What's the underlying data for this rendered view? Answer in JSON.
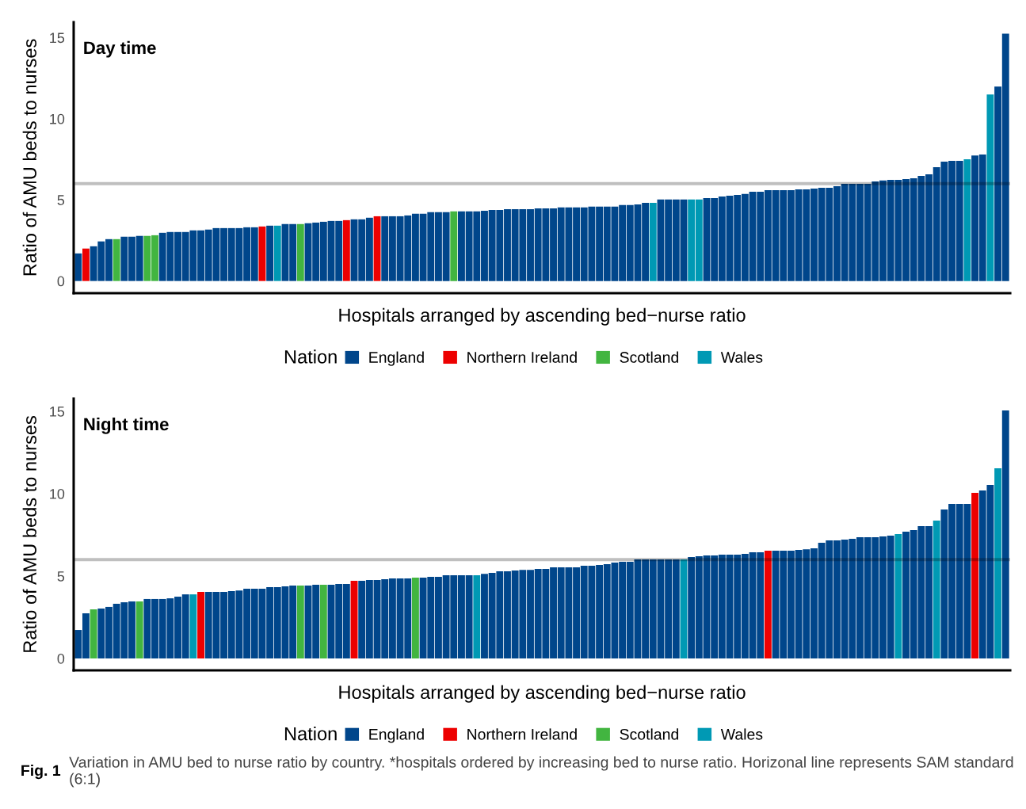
{
  "chart_data": [
    {
      "type": "bar",
      "title": "Day time",
      "xlabel": "Hospitals arranged by ascending bed−nurse ratio",
      "ylabel": "Ratio of AMU beds to nurses",
      "legend_title": "Nation",
      "legend": "bottom",
      "grid": false,
      "categories": [
        null,
        null,
        null,
        null,
        null,
        null,
        null,
        null,
        null,
        null,
        null,
        null,
        null,
        null,
        null,
        null,
        null,
        null,
        null,
        null,
        null,
        null,
        null,
        null,
        null,
        null,
        null,
        null,
        null,
        null,
        null,
        null,
        null,
        null,
        null,
        null,
        null,
        null,
        null,
        null,
        null,
        null,
        null,
        null,
        null,
        null,
        null,
        null,
        null,
        null,
        null,
        null,
        null,
        null,
        null,
        null,
        null,
        null,
        null,
        null,
        null,
        null,
        null,
        null,
        null,
        null,
        null,
        null,
        null,
        null,
        null,
        null,
        null,
        null,
        null,
        null,
        null,
        null,
        null,
        null,
        null,
        null,
        null,
        null,
        null,
        null,
        null,
        null,
        null,
        null,
        null,
        null,
        null,
        null,
        null,
        null,
        null,
        null,
        null,
        null,
        null,
        null,
        null,
        null,
        null,
        null,
        null,
        null,
        null,
        null,
        null,
        null,
        null,
        null,
        null,
        null,
        null,
        null,
        null,
        null,
        null,
        null
      ],
      "ylim": [
        -0.75,
        15.95
      ],
      "yticks": [
        0,
        5,
        10,
        15
      ],
      "ref_lines": [
        {
          "axis": "y",
          "value": 6
        }
      ],
      "series": [
        {
          "name": "England",
          "color": "#00468b",
          "values": [
            1.7,
            null,
            2.14,
            2.44,
            2.58,
            null,
            2.73,
            2.73,
            2.78,
            null,
            null,
            2.97,
            3.02,
            3.02,
            3.02,
            3.12,
            3.12,
            3.17,
            3.26,
            3.26,
            3.26,
            3.26,
            3.31,
            3.31,
            null,
            3.41,
            null,
            3.51,
            3.51,
            null,
            3.56,
            3.6,
            3.65,
            3.7,
            3.7,
            null,
            3.8,
            3.8,
            3.9,
            null,
            3.99,
            3.99,
            3.99,
            4.04,
            4.14,
            4.14,
            4.24,
            4.24,
            4.24,
            null,
            4.29,
            4.29,
            4.29,
            4.33,
            4.38,
            4.38,
            4.43,
            4.43,
            4.43,
            4.43,
            4.48,
            4.48,
            4.48,
            4.53,
            4.53,
            4.53,
            4.53,
            4.58,
            4.58,
            4.58,
            4.58,
            4.68,
            4.68,
            4.72,
            4.82,
            null,
            5.02,
            5.02,
            5.02,
            5.02,
            null,
            null,
            5.11,
            5.11,
            5.21,
            5.26,
            5.31,
            5.36,
            5.5,
            5.5,
            5.6,
            5.6,
            5.6,
            5.6,
            5.65,
            5.65,
            5.7,
            5.75,
            5.75,
            5.84,
            5.99,
            5.99,
            5.99,
            5.99,
            6.14,
            6.19,
            6.23,
            6.23,
            6.28,
            6.33,
            6.48,
            6.57,
            7.01,
            7.35,
            7.4,
            7.4,
            null,
            7.74,
            7.79,
            null,
            11.98,
            15.24
          ]
        },
        {
          "name": "Northern Ireland",
          "color": "#ed0000",
          "values": [
            null,
            2.0,
            null,
            null,
            null,
            null,
            null,
            null,
            null,
            null,
            null,
            null,
            null,
            null,
            null,
            null,
            null,
            null,
            null,
            null,
            null,
            null,
            null,
            null,
            3.36,
            null,
            null,
            null,
            null,
            null,
            null,
            null,
            null,
            null,
            null,
            3.75,
            null,
            null,
            null,
            3.99,
            null,
            null,
            null,
            null,
            null,
            null,
            null,
            null,
            null,
            null,
            null,
            null,
            null,
            null,
            null,
            null,
            null,
            null,
            null,
            null,
            null,
            null,
            null,
            null,
            null,
            null,
            null,
            null,
            null,
            null,
            null,
            null,
            null,
            null,
            null,
            null,
            null,
            null,
            null,
            null,
            null,
            null,
            null,
            null,
            null,
            null,
            null,
            null,
            null,
            null,
            null,
            null,
            null,
            null,
            null,
            null,
            null,
            null,
            null,
            null,
            null,
            null,
            null,
            null,
            null,
            null,
            null,
            null,
            null,
            null,
            null,
            null,
            null,
            null,
            null,
            null,
            null,
            null,
            null,
            null,
            null,
            null
          ]
        },
        {
          "name": "Scotland",
          "color": "#42b540",
          "values": [
            null,
            null,
            null,
            null,
            null,
            2.58,
            null,
            null,
            null,
            2.78,
            2.82,
            null,
            null,
            null,
            null,
            null,
            null,
            null,
            null,
            null,
            null,
            null,
            null,
            null,
            null,
            null,
            null,
            null,
            null,
            3.51,
            null,
            null,
            null,
            null,
            null,
            null,
            null,
            null,
            null,
            null,
            null,
            null,
            null,
            null,
            null,
            null,
            null,
            null,
            null,
            4.29,
            null,
            null,
            null,
            null,
            null,
            null,
            null,
            null,
            null,
            null,
            null,
            null,
            null,
            null,
            null,
            null,
            null,
            null,
            null,
            null,
            null,
            null,
            null,
            null,
            null,
            null,
            null,
            null,
            null,
            null,
            null,
            null,
            null,
            null,
            null,
            null,
            null,
            null,
            null,
            null,
            null,
            null,
            null,
            null,
            null,
            null,
            null,
            null,
            null,
            null,
            null,
            null,
            null,
            null,
            null,
            null,
            null,
            null,
            null,
            null,
            null,
            null,
            null,
            null,
            null,
            null,
            null,
            null,
            null,
            null,
            null,
            null
          ]
        },
        {
          "name": "Wales",
          "color": "#0099b4",
          "values": [
            null,
            null,
            null,
            null,
            null,
            null,
            null,
            null,
            null,
            null,
            null,
            null,
            null,
            null,
            null,
            null,
            null,
            null,
            null,
            null,
            null,
            null,
            null,
            null,
            null,
            null,
            3.41,
            null,
            null,
            null,
            null,
            null,
            null,
            null,
            null,
            null,
            null,
            null,
            null,
            null,
            null,
            null,
            null,
            null,
            null,
            null,
            null,
            null,
            null,
            null,
            null,
            null,
            null,
            null,
            null,
            null,
            null,
            null,
            null,
            null,
            null,
            null,
            null,
            null,
            null,
            null,
            null,
            null,
            null,
            null,
            null,
            null,
            null,
            null,
            null,
            4.82,
            null,
            null,
            null,
            null,
            5.02,
            5.02,
            null,
            null,
            null,
            null,
            null,
            null,
            null,
            null,
            null,
            null,
            null,
            null,
            null,
            null,
            null,
            null,
            null,
            null,
            null,
            null,
            null,
            null,
            null,
            null,
            null,
            null,
            null,
            null,
            null,
            null,
            null,
            null,
            null,
            null,
            7.5,
            null,
            null,
            11.49,
            null,
            null
          ]
        }
      ]
    },
    {
      "type": "bar",
      "title": "Night time",
      "xlabel": "Hospitals arranged by ascending bed−nurse ratio",
      "ylabel": "Ratio of AMU beds to nurses",
      "legend_title": "Nation",
      "legend": "bottom",
      "grid": false,
      "categories": [
        null,
        null,
        null,
        null,
        null,
        null,
        null,
        null,
        null,
        null,
        null,
        null,
        null,
        null,
        null,
        null,
        null,
        null,
        null,
        null,
        null,
        null,
        null,
        null,
        null,
        null,
        null,
        null,
        null,
        null,
        null,
        null,
        null,
        null,
        null,
        null,
        null,
        null,
        null,
        null,
        null,
        null,
        null,
        null,
        null,
        null,
        null,
        null,
        null,
        null,
        null,
        null,
        null,
        null,
        null,
        null,
        null,
        null,
        null,
        null,
        null,
        null,
        null,
        null,
        null,
        null,
        null,
        null,
        null,
        null,
        null,
        null,
        null,
        null,
        null,
        null,
        null,
        null,
        null,
        null,
        null,
        null,
        null,
        null,
        null,
        null,
        null,
        null,
        null,
        null,
        null,
        null,
        null,
        null,
        null,
        null,
        null,
        null,
        null,
        null,
        null,
        null,
        null,
        null,
        null,
        null,
        null,
        null,
        null,
        null,
        null,
        null,
        null,
        null,
        null,
        null,
        null,
        null,
        null,
        null,
        null,
        null
      ],
      "ylim": [
        -0.72,
        15.77
      ],
      "yticks": [
        0,
        5,
        10,
        15
      ],
      "ref_lines": [
        {
          "axis": "y",
          "value": 6
        }
      ],
      "annotations": [
        "Fig. 1",
        "Variation in AMU bed to nurse ratio by country. *hospitals ordered by increasing bed to nurse ratio. Horizonal line represents SAM standard (6:1)"
      ],
      "series": [
        {
          "name": "England",
          "color": "#00468b",
          "values": [
            1.73,
            2.74,
            null,
            3.03,
            3.13,
            3.32,
            3.41,
            3.46,
            null,
            3.61,
            3.61,
            3.61,
            3.65,
            3.75,
            3.89,
            null,
            null,
            4.04,
            4.04,
            4.04,
            4.09,
            4.13,
            4.23,
            4.23,
            4.23,
            4.33,
            4.33,
            4.38,
            4.42,
            null,
            4.42,
            4.47,
            null,
            4.47,
            4.52,
            4.52,
            null,
            4.71,
            4.76,
            4.76,
            4.81,
            4.86,
            4.86,
            4.86,
            null,
            4.9,
            4.95,
            4.95,
            5.05,
            5.05,
            5.05,
            5.05,
            null,
            5.14,
            5.19,
            5.29,
            5.29,
            5.34,
            5.38,
            5.38,
            5.43,
            5.43,
            5.53,
            5.53,
            5.53,
            5.53,
            5.63,
            5.63,
            5.67,
            5.72,
            5.82,
            5.87,
            5.87,
            6.01,
            6.01,
            6.01,
            6.01,
            6.01,
            6.01,
            null,
            6.15,
            6.2,
            6.25,
            6.25,
            6.3,
            6.3,
            6.3,
            6.35,
            6.44,
            6.44,
            null,
            6.54,
            6.54,
            6.54,
            6.59,
            6.63,
            6.68,
            7.02,
            7.16,
            7.16,
            7.21,
            7.26,
            7.36,
            7.36,
            7.36,
            7.4,
            7.45,
            null,
            7.69,
            7.79,
            8.03,
            8.03,
            null,
            9.04,
            9.38,
            9.38,
            9.38,
            null,
            10.19,
            10.53,
            null,
            15.05
          ]
        },
        {
          "name": "Northern Ireland",
          "color": "#ed0000",
          "values": [
            null,
            null,
            null,
            null,
            null,
            null,
            null,
            null,
            null,
            null,
            null,
            null,
            null,
            null,
            null,
            null,
            4.04,
            null,
            null,
            null,
            null,
            null,
            null,
            null,
            null,
            null,
            null,
            null,
            null,
            null,
            null,
            null,
            null,
            null,
            null,
            null,
            4.71,
            null,
            null,
            null,
            null,
            null,
            null,
            null,
            null,
            null,
            null,
            null,
            null,
            null,
            null,
            null,
            null,
            null,
            null,
            null,
            null,
            null,
            null,
            null,
            null,
            null,
            null,
            null,
            null,
            null,
            null,
            null,
            null,
            null,
            null,
            null,
            null,
            null,
            null,
            null,
            null,
            null,
            null,
            null,
            null,
            null,
            null,
            null,
            null,
            null,
            null,
            null,
            null,
            null,
            6.54,
            null,
            null,
            null,
            null,
            null,
            null,
            null,
            null,
            null,
            null,
            null,
            null,
            null,
            null,
            null,
            null,
            null,
            null,
            null,
            null,
            null,
            null,
            null,
            null,
            null,
            null,
            10.05,
            null,
            null,
            null,
            null
          ]
        },
        {
          "name": "Scotland",
          "color": "#42b540",
          "values": [
            null,
            null,
            2.98,
            null,
            null,
            null,
            null,
            null,
            3.46,
            null,
            null,
            null,
            null,
            null,
            null,
            null,
            null,
            null,
            null,
            null,
            null,
            null,
            null,
            null,
            null,
            null,
            null,
            null,
            null,
            4.42,
            null,
            null,
            4.47,
            null,
            null,
            null,
            null,
            null,
            null,
            null,
            null,
            null,
            null,
            null,
            4.9,
            null,
            null,
            null,
            null,
            null,
            null,
            null,
            null,
            null,
            null,
            null,
            null,
            null,
            null,
            null,
            null,
            null,
            null,
            null,
            null,
            null,
            null,
            null,
            null,
            null,
            null,
            null,
            null,
            null,
            null,
            null,
            null,
            null,
            null,
            null,
            null,
            null,
            null,
            null,
            null,
            null,
            null,
            null,
            null,
            null,
            null,
            null,
            null,
            null,
            null,
            null,
            null,
            null,
            null,
            null,
            null,
            null,
            null,
            null,
            null,
            null,
            null,
            null,
            null,
            null,
            null,
            null,
            null,
            null,
            null,
            null,
            null,
            null,
            null,
            null,
            null,
            null
          ]
        },
        {
          "name": "Wales",
          "color": "#0099b4",
          "values": [
            null,
            null,
            null,
            null,
            null,
            null,
            null,
            null,
            null,
            null,
            null,
            null,
            null,
            null,
            null,
            3.89,
            null,
            null,
            null,
            null,
            null,
            null,
            null,
            null,
            null,
            null,
            null,
            null,
            null,
            null,
            null,
            null,
            null,
            null,
            null,
            null,
            null,
            null,
            null,
            null,
            null,
            null,
            null,
            null,
            null,
            null,
            null,
            null,
            null,
            null,
            null,
            null,
            5.05,
            null,
            null,
            null,
            null,
            null,
            null,
            null,
            null,
            null,
            null,
            null,
            null,
            null,
            null,
            null,
            null,
            null,
            null,
            null,
            null,
            null,
            null,
            null,
            null,
            null,
            null,
            6.01,
            null,
            null,
            null,
            null,
            null,
            null,
            null,
            null,
            null,
            null,
            null,
            null,
            null,
            null,
            null,
            null,
            null,
            null,
            null,
            null,
            null,
            null,
            null,
            null,
            null,
            null,
            null,
            7.55,
            null,
            null,
            null,
            null,
            8.37,
            null,
            null,
            null,
            null,
            null,
            null,
            null,
            11.54,
            null
          ]
        }
      ]
    }
  ]
}
